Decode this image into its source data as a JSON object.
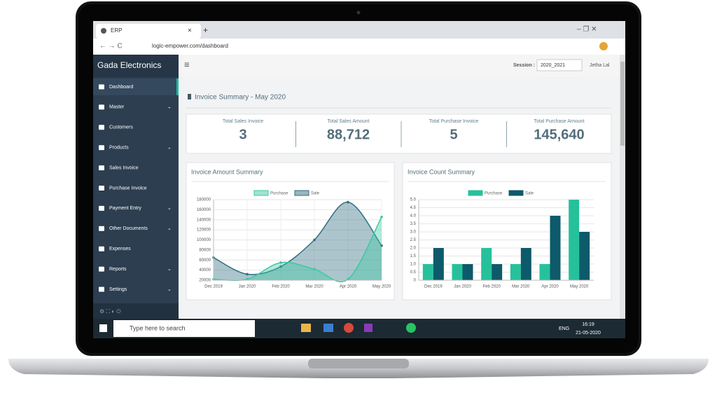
{
  "browser": {
    "tab": "ERP",
    "url": "logic-empower.com/dashboard"
  },
  "sidebar": {
    "brand": "Gada Electronics",
    "menu": [
      {
        "label": "Dashboard",
        "active": true
      },
      {
        "label": "Master",
        "submenu": true
      },
      {
        "label": "Customers"
      },
      {
        "label": "Products",
        "submenu": true
      },
      {
        "label": "Sales Invoice"
      },
      {
        "label": "Purchase Invoice"
      },
      {
        "label": "Payment Entry",
        "submenu": true
      },
      {
        "label": "Other Documents",
        "submenu": true
      },
      {
        "label": "Expenses"
      },
      {
        "label": "Reports",
        "submenu": true
      },
      {
        "label": "Settings",
        "submenu": true
      }
    ]
  },
  "header": {
    "session_label": "Session :",
    "session": "2020_2021",
    "user": "Jetha Lal"
  },
  "summary": {
    "title": "Invoice Summary - May 2020",
    "stats": [
      {
        "label": "Total Sales Invoice",
        "value": "3"
      },
      {
        "label": "Total Sales Amount",
        "value": "88,712"
      },
      {
        "label": "Total Purchase Invoice",
        "value": "5"
      },
      {
        "label": "Total Purchase Amount",
        "value": "145,640"
      }
    ]
  },
  "chart_data": [
    {
      "type": "line",
      "area": true,
      "title": "Invoice Amount Summary",
      "categories": [
        "Dec 2019",
        "Jan 2020",
        "Feb 2020",
        "Mar 2020",
        "Apr 2020",
        "May 2020"
      ],
      "series": [
        {
          "name": "Purchase",
          "color": "#3cc9a2",
          "values": [
            22000,
            22000,
            55000,
            42000,
            22000,
            145640
          ]
        },
        {
          "name": "Sale",
          "color": "#2f6f82",
          "values": [
            65000,
            32000,
            47000,
            100000,
            175000,
            88712
          ]
        }
      ],
      "ylim": [
        20000,
        180000
      ],
      "yticks": [
        20000,
        40000,
        60000,
        80000,
        100000,
        120000,
        140000,
        160000,
        180000
      ],
      "grid": true,
      "legend": "top"
    },
    {
      "type": "bar",
      "title": "Invoice Count Summary",
      "categories": [
        "Dec 2019",
        "Jan 2020",
        "Feb 2020",
        "Mar 2020",
        "Apr 2020",
        "May 2020"
      ],
      "series": [
        {
          "name": "Purchase",
          "color": "#26c19b",
          "values": [
            1,
            1,
            2,
            1,
            1,
            5
          ]
        },
        {
          "name": "Sale",
          "color": "#0d5a6b",
          "values": [
            2,
            1,
            1,
            2,
            4,
            3
          ]
        }
      ],
      "ylim": [
        0,
        5
      ],
      "yticks": [
        0,
        0.5,
        {
          "value": 1,
          "label": "1.0"
        },
        1.5,
        {
          "value": 2,
          "label": "2.0"
        },
        2.5,
        {
          "value": 3,
          "label": "3.0"
        },
        3.5,
        {
          "value": 4,
          "label": "4.0"
        },
        4.5,
        {
          "value": 5,
          "label": "5.0"
        }
      ],
      "grid": true,
      "legend": "top"
    }
  ],
  "taskbar": {
    "search": "Type here to search",
    "lang": "ENG",
    "time": "16:19",
    "date": "21-05-2020"
  }
}
